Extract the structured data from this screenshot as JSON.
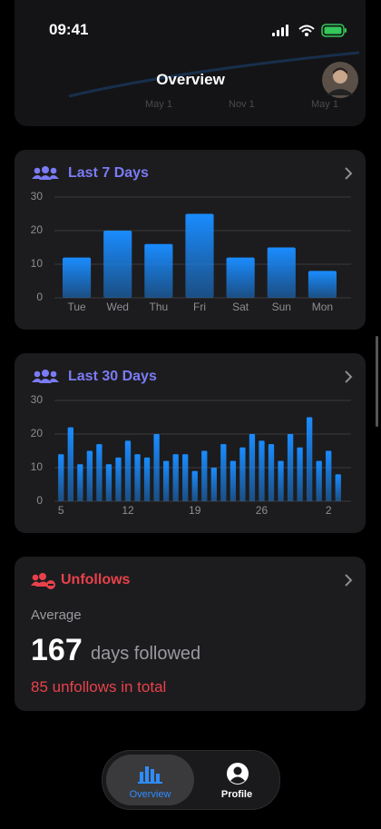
{
  "status_bar": {
    "time": "09:41"
  },
  "header": {
    "title": "Overview",
    "background_labels": [
      "May 1",
      "Nov 1",
      "May 1"
    ]
  },
  "cards": {
    "last_7_days": {
      "title": "Last 7 Days",
      "chart": {
        "type": "bar",
        "color": "#1a8cff",
        "categories": [
          "Tue",
          "Wed",
          "Thu",
          "Fri",
          "Sat",
          "Sun",
          "Mon"
        ],
        "values": [
          12,
          20,
          16,
          25,
          12,
          15,
          8
        ],
        "ylim": [
          0,
          30
        ],
        "yticks": [
          0,
          10,
          20,
          30
        ],
        "grid": true
      }
    },
    "last_30_days": {
      "title": "Last 30 Days",
      "chart": {
        "type": "bar",
        "color": "#1a8cff",
        "categories": [
          "5",
          null,
          null,
          null,
          null,
          null,
          null,
          "12",
          null,
          null,
          null,
          null,
          null,
          null,
          "19",
          null,
          null,
          null,
          null,
          null,
          null,
          "26",
          null,
          null,
          null,
          null,
          null,
          null,
          "2",
          null
        ],
        "values": [
          14,
          22,
          11,
          15,
          17,
          11,
          13,
          18,
          14,
          13,
          20,
          12,
          14,
          14,
          9,
          15,
          10,
          17,
          12,
          16,
          20,
          18,
          17,
          12,
          20,
          16,
          25,
          12,
          15,
          8
        ],
        "ylim": [
          0,
          30
        ],
        "yticks": [
          0,
          10,
          20,
          30
        ],
        "grid": true
      }
    },
    "unfollows": {
      "title": "Unfollows",
      "average_label": "Average",
      "average_value": 167,
      "average_unit": "days followed",
      "total_text": "85 unfollows in total"
    }
  },
  "tab_bar": {
    "tabs": [
      "Overview",
      "Profile"
    ]
  }
}
